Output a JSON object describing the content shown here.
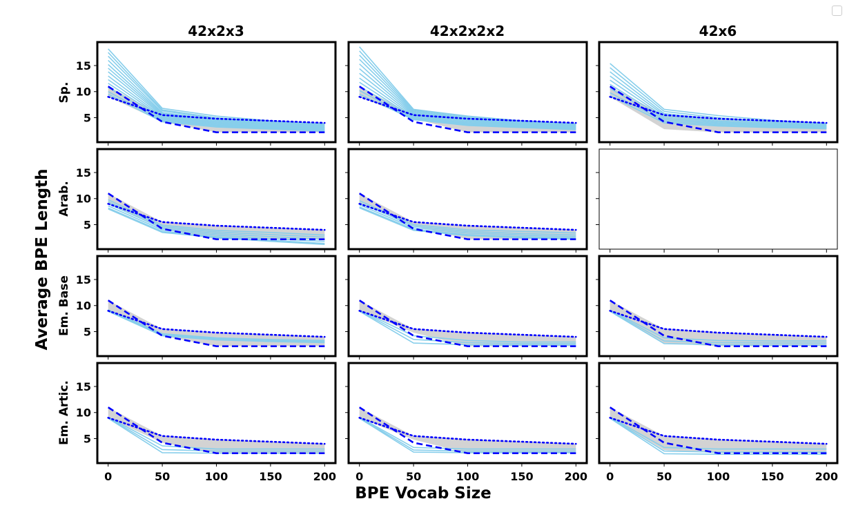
{
  "chart_data": {
    "type": "line",
    "xlabel": "BPE Vocab Size",
    "ylabel": "Average BPE Length",
    "x": [
      0,
      50,
      100,
      150,
      200
    ],
    "xticks": [
      "0",
      "50",
      "100",
      "150",
      "200"
    ],
    "yticks": [
      "5",
      "10",
      "15"
    ],
    "xlim": [
      -10,
      210
    ],
    "ylim": [
      0.3,
      19.5
    ],
    "columns": [
      "42x2x3",
      "42x2x2x2",
      "42x6"
    ],
    "rows": [
      "Sp.",
      "Arab.",
      "Em. Base",
      "Em. Artic."
    ],
    "reference_series": [
      {
        "name": "dashed-upper-reference",
        "style": "dashed",
        "color": "#0000ff",
        "values": [
          11,
          4.2,
          2.2,
          2.2,
          2.2
        ]
      },
      {
        "name": "dotted-lower-reference",
        "style": "dotted",
        "color": "#0000ff",
        "values": [
          9,
          5.5,
          4.8,
          4.4,
          4.0
        ]
      }
    ],
    "colors": {
      "series": "#87ceeb",
      "band": "#d3d3d3",
      "reference": "#0000ff"
    },
    "panels": [
      {
        "row": 0,
        "col": 0,
        "empty": false,
        "band": [
          [
            9,
            4.2,
            2.2,
            2.2,
            2.2
          ],
          [
            11,
            5.5,
            4.8,
            4.4,
            4.0
          ]
        ],
        "series": [
          [
            18.2,
            6.8,
            5.3,
            4.4,
            3.8
          ],
          [
            17.5,
            6.5,
            5.0,
            4.2,
            3.6
          ],
          [
            16.8,
            6.3,
            4.8,
            4.0,
            3.5
          ],
          [
            16.0,
            6.0,
            4.6,
            3.9,
            3.4
          ],
          [
            15.2,
            5.8,
            4.5,
            3.7,
            3.2
          ],
          [
            14.5,
            5.6,
            4.3,
            3.6,
            3.1
          ],
          [
            13.8,
            5.4,
            4.1,
            3.4,
            3.0
          ],
          [
            13.0,
            5.2,
            3.9,
            3.3,
            2.9
          ],
          [
            12.3,
            5.0,
            3.8,
            3.2,
            2.8
          ],
          [
            11.6,
            4.8,
            3.6,
            3.1,
            2.7
          ],
          [
            10.8,
            4.6,
            3.5,
            3.0,
            2.6
          ],
          [
            10.0,
            4.4,
            3.4,
            2.9,
            2.5
          ],
          [
            9.5,
            4.2,
            3.2,
            2.8,
            2.4
          ]
        ]
      },
      {
        "row": 0,
        "col": 1,
        "empty": false,
        "band": [
          [
            9,
            4.8,
            2.2,
            2.2,
            2.2
          ],
          [
            11,
            5.5,
            4.8,
            4.4,
            4.0
          ]
        ],
        "series": [
          [
            18.6,
            6.6,
            5.3,
            4.4,
            3.8
          ],
          [
            17.8,
            6.4,
            5.1,
            4.2,
            3.7
          ],
          [
            17.0,
            6.2,
            4.9,
            4.1,
            3.6
          ],
          [
            16.2,
            6.0,
            4.7,
            3.9,
            3.5
          ],
          [
            15.3,
            5.8,
            4.5,
            3.8,
            3.4
          ],
          [
            14.4,
            5.6,
            4.4,
            3.7,
            3.3
          ],
          [
            13.5,
            5.4,
            4.2,
            3.6,
            3.2
          ],
          [
            12.6,
            5.2,
            4.0,
            3.5,
            3.1
          ],
          [
            11.8,
            5.0,
            3.9,
            3.4,
            3.0
          ],
          [
            11.0,
            4.9,
            3.7,
            3.3,
            2.9
          ],
          [
            10.2,
            4.7,
            3.6,
            3.2,
            2.8
          ],
          [
            9.5,
            4.6,
            3.5,
            3.1,
            2.7
          ]
        ]
      },
      {
        "row": 0,
        "col": 2,
        "empty": false,
        "band": [
          [
            9,
            2.8,
            2.2,
            2.2,
            2.2
          ],
          [
            11,
            5.5,
            4.8,
            4.4,
            4.0
          ]
        ],
        "series": [
          [
            15.4,
            6.6,
            5.4,
            4.5,
            3.9
          ],
          [
            14.6,
            6.2,
            5.0,
            4.2,
            3.7
          ],
          [
            13.8,
            5.8,
            4.7,
            4.0,
            3.5
          ],
          [
            13.0,
            5.5,
            4.4,
            3.8,
            3.4
          ],
          [
            12.2,
            5.2,
            4.2,
            3.6,
            3.3
          ],
          [
            11.4,
            4.9,
            4.0,
            3.5,
            3.2
          ],
          [
            10.6,
            4.6,
            3.8,
            3.4,
            3.1
          ],
          [
            9.8,
            4.3,
            3.6,
            3.2,
            3.0
          ],
          [
            9.2,
            4.0,
            3.4,
            3.1,
            2.9
          ]
        ]
      },
      {
        "row": 1,
        "col": 0,
        "empty": false,
        "band": [
          [
            9,
            4.2,
            2.2,
            2.2,
            2.2
          ],
          [
            11,
            5.5,
            4.8,
            4.4,
            4.0
          ]
        ],
        "series": [
          [
            9.8,
            4.9,
            3.9,
            3.5,
            3.0
          ],
          [
            9.4,
            4.6,
            3.6,
            3.1,
            2.6
          ],
          [
            9.0,
            4.3,
            3.3,
            2.7,
            2.2
          ],
          [
            8.6,
            4.0,
            3.0,
            2.3,
            1.8
          ],
          [
            8.2,
            3.7,
            2.7,
            2.0,
            1.4
          ],
          [
            8.0,
            3.5,
            2.5,
            1.8,
            1.2
          ]
        ]
      },
      {
        "row": 1,
        "col": 1,
        "empty": false,
        "band": [
          [
            9,
            4.8,
            2.2,
            2.2,
            2.2
          ],
          [
            11,
            5.5,
            4.8,
            4.4,
            4.0
          ]
        ],
        "series": [
          [
            9.6,
            5.0,
            4.0,
            3.7,
            3.4
          ],
          [
            9.2,
            4.7,
            3.7,
            3.3,
            3.0
          ],
          [
            8.8,
            4.4,
            3.4,
            3.0,
            2.7
          ],
          [
            8.4,
            4.1,
            3.1,
            2.7,
            2.4
          ],
          [
            8.2,
            3.9,
            2.9,
            2.5,
            2.2
          ]
        ]
      },
      {
        "row": 1,
        "col": 2,
        "empty": true,
        "band": null,
        "series": []
      },
      {
        "row": 2,
        "col": 0,
        "empty": false,
        "band": [
          [
            9,
            4.2,
            2.2,
            2.2,
            2.2
          ],
          [
            11,
            5.5,
            4.8,
            4.4,
            4.0
          ]
        ],
        "series": [
          [
            9.2,
            4.6,
            3.8,
            3.5,
            3.3
          ],
          [
            9.0,
            4.4,
            3.6,
            3.3,
            3.1
          ],
          [
            8.9,
            4.2,
            3.4,
            3.1,
            2.9
          ]
        ]
      },
      {
        "row": 2,
        "col": 1,
        "empty": false,
        "band": [
          [
            9,
            4.8,
            2.2,
            2.2,
            2.2
          ],
          [
            11,
            5.5,
            4.8,
            4.4,
            4.0
          ]
        ],
        "series": [
          [
            9.1,
            4.2,
            3.3,
            3.0,
            3.0
          ],
          [
            9.0,
            3.5,
            2.9,
            2.7,
            2.7
          ],
          [
            8.9,
            2.8,
            2.5,
            2.4,
            2.4
          ]
        ]
      },
      {
        "row": 2,
        "col": 2,
        "empty": false,
        "band": [
          [
            9,
            2.8,
            2.2,
            2.2,
            2.2
          ],
          [
            11,
            5.5,
            4.8,
            4.4,
            4.0
          ]
        ],
        "series": [
          [
            9.1,
            3.8,
            3.3,
            3.2,
            3.2
          ],
          [
            9.0,
            3.2,
            2.9,
            2.8,
            2.8
          ],
          [
            8.9,
            2.7,
            2.5,
            2.4,
            2.4
          ]
        ]
      },
      {
        "row": 3,
        "col": 0,
        "empty": false,
        "band": [
          [
            9,
            4.2,
            2.2,
            2.2,
            2.2
          ],
          [
            11,
            5.5,
            4.8,
            4.4,
            4.0
          ]
        ],
        "series": [
          [
            9.1,
            3.6,
            3.0,
            3.0,
            3.0
          ],
          [
            9.0,
            2.9,
            2.6,
            2.6,
            2.6
          ],
          [
            8.9,
            2.3,
            2.2,
            2.2,
            2.2
          ]
        ]
      },
      {
        "row": 3,
        "col": 1,
        "empty": false,
        "band": [
          [
            9,
            4.8,
            2.2,
            2.2,
            2.2
          ],
          [
            11,
            5.5,
            4.8,
            4.4,
            4.0
          ]
        ],
        "series": [
          [
            9.1,
            3.3,
            3.0,
            3.0,
            3.0
          ],
          [
            9.0,
            2.8,
            2.6,
            2.6,
            2.6
          ],
          [
            8.9,
            2.4,
            2.3,
            2.3,
            2.3
          ]
        ]
      },
      {
        "row": 3,
        "col": 2,
        "empty": false,
        "band": [
          [
            9,
            2.8,
            2.2,
            2.2,
            2.2
          ],
          [
            11,
            5.5,
            4.8,
            4.4,
            4.0
          ]
        ],
        "series": [
          [
            9.1,
            3.3,
            3.0,
            3.0,
            3.0
          ],
          [
            9.0,
            2.6,
            2.4,
            2.4,
            2.4
          ],
          [
            8.9,
            2.1,
            2.0,
            2.0,
            2.0
          ]
        ]
      }
    ]
  }
}
